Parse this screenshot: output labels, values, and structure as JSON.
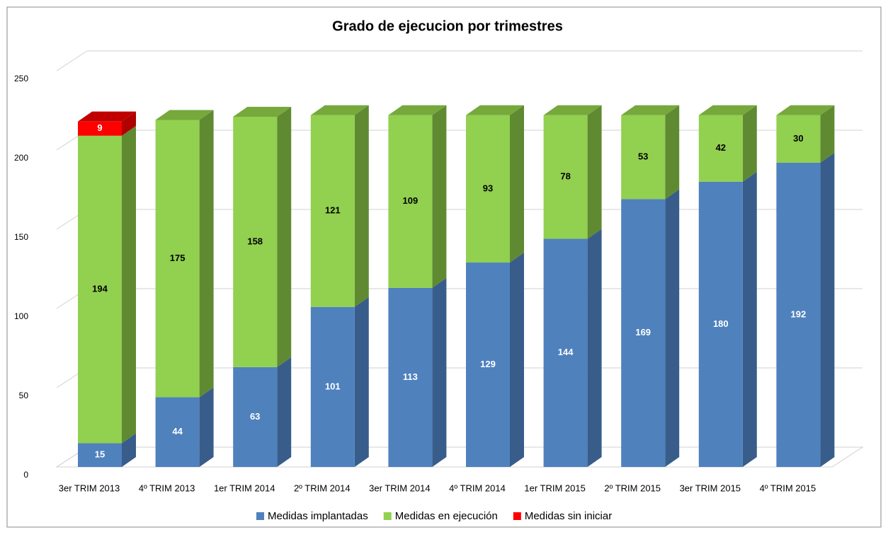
{
  "chart_data": {
    "type": "bar3d_stacked",
    "title": "Grado de ejecucion  por trimestres",
    "categories": [
      "3er TRIM 2013",
      "4º TRIM 2013",
      "1er TRIM 2014",
      "2º TRIM 2014",
      "3er TRIM 2014",
      "4º TRIM 2014",
      "1er TRIM 2015",
      "2º TRIM 2015",
      "3er TRIM 2015",
      "4º TRIM 2015"
    ],
    "series": [
      {
        "name": "Medidas implantadas",
        "color": "#4f81bd",
        "side": "#385d8a",
        "top": "#6b9bd4",
        "label_color": "#ffffff",
        "values": [
          15,
          44,
          63,
          101,
          113,
          129,
          144,
          169,
          180,
          192
        ]
      },
      {
        "name": "Medidas en ejecución",
        "color": "#92d050",
        "side": "#5f8a32",
        "top": "#76a83c",
        "label_color": "#000000",
        "values": [
          194,
          175,
          158,
          121,
          109,
          93,
          78,
          53,
          42,
          30
        ]
      },
      {
        "name": "Medidas sin iniciar",
        "color": "#ff0000",
        "side": "#b00000",
        "top": "#c00000",
        "label_color": "#ffffff",
        "values": [
          9,
          null,
          null,
          null,
          null,
          null,
          null,
          null,
          null,
          null
        ]
      }
    ],
    "ylim": [
      0,
      250
    ],
    "yticks": [
      0,
      50,
      100,
      150,
      200,
      250
    ],
    "grid": true,
    "legend": "bottom"
  }
}
